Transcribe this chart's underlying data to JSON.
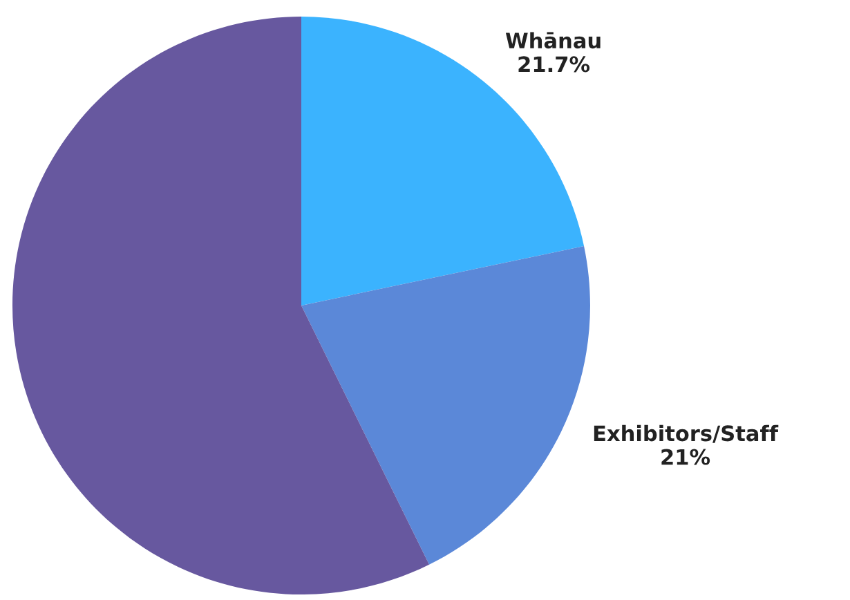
{
  "chart_data": {
    "type": "pie",
    "categories": [
      "Whānau",
      "Exhibitors/Staff",
      null
    ],
    "values": [
      21.7,
      21,
      57.3
    ],
    "value_labels": [
      "21.7%",
      "21%",
      null
    ],
    "colors": [
      "#3bb3fe",
      "#5b88d8",
      "#67589f"
    ]
  }
}
